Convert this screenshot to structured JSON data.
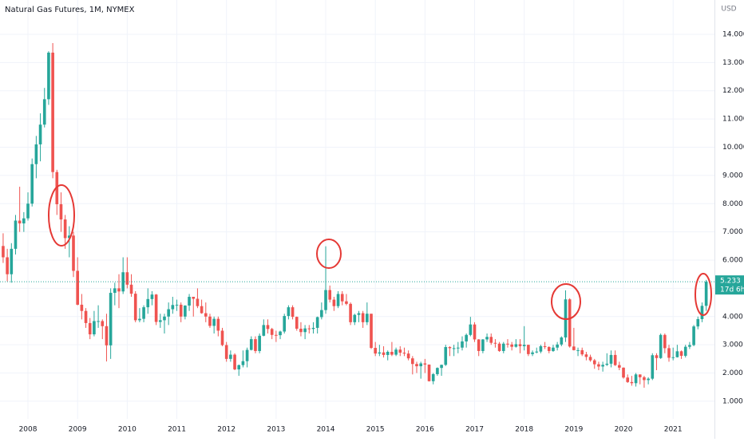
{
  "chart_data": {
    "type": "candlestick",
    "title": "Natural Gas Futures, 1M, NYMEX",
    "currency": "USD",
    "last_price_countdown": "17d 6h",
    "up_color": "#26a69a",
    "down_color": "#ef5350",
    "grid": true,
    "open": [
      6.5,
      6.1,
      5.5,
      6.4,
      7.4,
      7.3,
      7.48,
      8.0,
      9.4,
      10.1,
      10.8,
      11.7,
      13.35,
      9.12,
      7.98,
      7.44,
      6.78,
      6.87,
      5.62,
      4.42,
      4.2,
      3.77,
      3.37,
      3.84,
      3.84,
      3.66,
      2.98,
      4.84,
      5.0,
      4.89,
      5.57,
      5.13,
      4.81,
      3.87,
      3.92,
      4.33,
      4.62,
      4.78,
      3.81,
      3.87,
      4.0,
      4.26,
      4.41,
      4.42,
      4.0,
      4.39,
      4.7,
      4.63,
      4.37,
      4.12,
      4.0,
      3.67,
      3.92,
      3.5,
      2.99,
      2.5,
      2.65,
      2.13,
      2.28,
      2.42,
      2.82,
      3.2,
      2.78,
      3.32,
      3.7,
      3.56,
      3.35,
      3.34,
      3.47,
      4.02,
      4.33,
      3.99,
      3.57,
      3.45,
      3.58,
      3.56,
      3.6,
      3.98,
      4.23,
      4.94,
      4.6,
      4.37,
      4.8,
      4.54,
      4.45,
      3.8,
      4.06,
      4.12,
      3.8,
      4.1,
      2.89,
      2.69,
      2.73,
      2.64,
      2.75,
      2.65,
      2.83,
      2.72,
      2.69,
      2.52,
      2.32,
      2.24,
      2.34,
      2.3,
      1.71,
      1.96,
      2.18,
      2.29,
      2.92,
      2.88,
      2.88,
      2.9,
      3.12,
      3.35,
      3.72,
      3.19,
      2.78,
      3.19,
      3.28,
      3.07,
      3.04,
      2.78,
      3.04,
      3.01,
      2.93,
      3.02,
      2.95,
      3.0,
      2.67,
      2.73,
      2.76,
      2.95,
      2.92,
      2.78,
      2.9,
      3.01,
      3.26,
      4.61,
      2.94,
      2.81,
      2.81,
      2.66,
      2.57,
      2.45,
      2.31,
      2.23,
      2.29,
      2.33,
      2.64,
      2.28,
      2.19,
      1.84,
      1.68,
      1.64,
      1.95,
      1.85,
      1.75,
      1.8,
      2.63,
      2.53,
      3.35,
      2.88,
      2.54,
      2.56,
      2.77,
      2.61,
      2.93,
      2.99,
      3.65,
      3.91,
      4.38
    ],
    "high": [
      6.95,
      6.4,
      6.6,
      7.6,
      8.6,
      7.7,
      8.4,
      9.6,
      10.4,
      11.2,
      12.1,
      13.4,
      13.69,
      9.2,
      8.4,
      7.6,
      7.2,
      7.0,
      6.1,
      4.8,
      4.3,
      3.95,
      4.2,
      4.4,
      3.9,
      4.1,
      5.0,
      5.2,
      5.5,
      6.1,
      6.1,
      5.5,
      4.9,
      4.3,
      4.4,
      5.0,
      4.9,
      4.8,
      4.1,
      4.1,
      4.5,
      4.7,
      4.6,
      4.5,
      4.4,
      4.8,
      4.7,
      5.0,
      4.6,
      4.5,
      4.1,
      4.0,
      4.0,
      3.6,
      3.1,
      2.8,
      2.7,
      2.3,
      2.8,
      2.9,
      3.3,
      3.3,
      3.4,
      3.9,
      3.9,
      3.6,
      3.5,
      3.5,
      4.1,
      4.4,
      4.4,
      4.0,
      3.8,
      3.7,
      3.7,
      3.8,
      4.0,
      4.5,
      6.49,
      5.1,
      4.7,
      4.9,
      4.9,
      4.8,
      4.5,
      4.1,
      4.2,
      4.2,
      4.5,
      4.1,
      3.1,
      3.0,
      2.95,
      2.8,
      3.1,
      2.9,
      2.95,
      2.9,
      2.8,
      2.6,
      2.4,
      2.4,
      2.5,
      2.3,
      2.0,
      2.2,
      2.3,
      3.0,
      2.95,
      3.0,
      3.1,
      3.3,
      3.4,
      3.99,
      3.8,
      3.2,
      3.2,
      3.4,
      3.4,
      3.2,
      3.1,
      3.1,
      3.2,
      3.1,
      3.2,
      3.2,
      3.66,
      3.0,
      2.8,
      2.9,
      3.0,
      3.1,
      2.95,
      3.0,
      3.1,
      3.3,
      4.93,
      4.65,
      3.6,
      2.9,
      2.9,
      2.75,
      2.65,
      2.5,
      2.4,
      2.4,
      2.7,
      2.8,
      2.8,
      2.4,
      2.2,
      1.95,
      1.9,
      2.0,
      1.95,
      1.9,
      1.85,
      2.7,
      2.7,
      3.4,
      3.4,
      3.0,
      2.9,
      3.0,
      2.8,
      3.0,
      3.1,
      3.7,
      4.0,
      4.5,
      5.3
    ],
    "low": [
      5.9,
      5.25,
      5.2,
      6.2,
      7.0,
      7.0,
      7.4,
      7.9,
      8.9,
      9.5,
      10.7,
      11.5,
      8.9,
      7.6,
      7.0,
      6.4,
      6.1,
      5.4,
      4.4,
      3.9,
      3.6,
      3.2,
      3.3,
      3.6,
      3.2,
      2.41,
      2.5,
      4.4,
      4.3,
      4.8,
      5.0,
      4.7,
      3.8,
      3.8,
      3.8,
      4.1,
      4.4,
      3.7,
      3.6,
      3.4,
      3.7,
      4.1,
      4.2,
      3.8,
      3.9,
      4.2,
      4.0,
      4.3,
      4.1,
      3.8,
      3.6,
      3.4,
      3.3,
      2.95,
      2.4,
      2.4,
      2.1,
      1.9,
      2.2,
      2.2,
      2.8,
      2.7,
      2.7,
      3.3,
      3.4,
      3.2,
      3.1,
      3.2,
      3.4,
      3.9,
      3.9,
      3.5,
      3.3,
      3.2,
      3.4,
      3.4,
      3.4,
      3.9,
      4.1,
      4.5,
      4.2,
      4.3,
      4.4,
      4.4,
      3.7,
      3.7,
      3.8,
      3.6,
      3.7,
      2.85,
      2.6,
      2.6,
      2.55,
      2.45,
      2.6,
      2.6,
      2.6,
      2.6,
      2.45,
      1.95,
      2.0,
      1.8,
      2.0,
      1.7,
      1.6,
      1.9,
      1.9,
      2.25,
      2.6,
      2.6,
      2.7,
      2.8,
      2.9,
      3.3,
      3.1,
      2.6,
      2.7,
      3.1,
      3.0,
      2.9,
      2.75,
      2.7,
      2.9,
      2.8,
      2.9,
      2.7,
      2.8,
      2.6,
      2.6,
      2.7,
      2.7,
      2.85,
      2.7,
      2.75,
      2.8,
      2.95,
      3.1,
      2.9,
      2.8,
      2.6,
      2.6,
      2.45,
      2.4,
      2.15,
      2.1,
      2.05,
      2.25,
      2.2,
      2.25,
      2.1,
      1.8,
      1.65,
      1.55,
      1.52,
      1.6,
      1.48,
      1.6,
      1.75,
      2.1,
      2.5,
      2.7,
      2.4,
      2.45,
      2.55,
      2.5,
      2.55,
      2.85,
      2.95,
      3.55,
      3.8,
      4.2
    ],
    "close": [
      6.1,
      5.5,
      6.4,
      7.4,
      7.3,
      7.48,
      8.0,
      9.4,
      10.1,
      10.8,
      11.7,
      13.35,
      9.12,
      7.98,
      7.44,
      6.78,
      6.87,
      5.62,
      4.42,
      4.2,
      3.77,
      3.37,
      3.84,
      3.84,
      3.66,
      2.98,
      4.84,
      5.0,
      4.89,
      5.57,
      5.13,
      4.81,
      3.87,
      3.92,
      4.33,
      4.62,
      4.78,
      3.81,
      3.87,
      4.0,
      4.26,
      4.41,
      4.42,
      4.0,
      4.39,
      4.7,
      4.63,
      4.37,
      4.12,
      4.0,
      3.67,
      3.92,
      3.5,
      2.99,
      2.5,
      2.65,
      2.13,
      2.28,
      2.42,
      2.82,
      3.2,
      2.78,
      3.32,
      3.7,
      3.56,
      3.35,
      3.34,
      3.47,
      4.02,
      4.33,
      3.99,
      3.57,
      3.45,
      3.58,
      3.56,
      3.6,
      3.98,
      4.23,
      4.94,
      4.6,
      4.37,
      4.8,
      4.54,
      4.45,
      3.8,
      4.06,
      4.12,
      3.8,
      4.1,
      2.89,
      2.69,
      2.73,
      2.64,
      2.75,
      2.65,
      2.83,
      2.72,
      2.69,
      2.52,
      2.32,
      2.24,
      2.34,
      2.3,
      1.71,
      1.96,
      2.18,
      2.29,
      2.92,
      2.88,
      2.88,
      2.9,
      3.12,
      3.35,
      3.72,
      3.19,
      2.78,
      3.19,
      3.28,
      3.07,
      3.04,
      2.78,
      3.04,
      3.01,
      2.93,
      3.02,
      2.95,
      3.0,
      2.67,
      2.73,
      2.76,
      2.95,
      2.92,
      2.78,
      2.9,
      3.01,
      3.26,
      4.61,
      2.94,
      2.81,
      2.81,
      2.66,
      2.57,
      2.45,
      2.31,
      2.23,
      2.29,
      2.33,
      2.64,
      2.28,
      2.19,
      1.84,
      1.68,
      1.64,
      1.95,
      1.85,
      1.75,
      1.8,
      2.63,
      2.53,
      3.35,
      2.88,
      2.54,
      2.56,
      2.77,
      2.61,
      2.93,
      2.99,
      3.65,
      3.91,
      4.38,
      5.233
    ],
    "xlim": [
      -0.76,
      172
    ],
    "xticks": [
      {
        "value": 6,
        "label": "2008"
      },
      {
        "value": 18,
        "label": "2009"
      },
      {
        "value": 30,
        "label": "2010"
      },
      {
        "value": 42,
        "label": "2011"
      },
      {
        "value": 54,
        "label": "2012"
      },
      {
        "value": 66,
        "label": "2013"
      },
      {
        "value": 78,
        "label": "2014"
      },
      {
        "value": 90,
        "label": "2015"
      },
      {
        "value": 102,
        "label": "2016"
      },
      {
        "value": 114,
        "label": "2017"
      },
      {
        "value": 126,
        "label": "2018"
      },
      {
        "value": 138,
        "label": "2019"
      },
      {
        "value": 150,
        "label": "2020"
      },
      {
        "value": 162,
        "label": "2021"
      }
    ],
    "ylim": [
      0.376,
      15.215
    ],
    "yticks": [
      {
        "value": 1,
        "label": "1.000"
      },
      {
        "value": 2,
        "label": "2.000"
      },
      {
        "value": 3,
        "label": "3.000"
      },
      {
        "value": 4,
        "label": "4.000"
      },
      {
        "value": 5,
        "label": "5.000"
      },
      {
        "value": 6,
        "label": "6.000"
      },
      {
        "value": 7,
        "label": "7.000"
      },
      {
        "value": 8,
        "label": "8.000"
      },
      {
        "value": 9,
        "label": "9.000"
      },
      {
        "value": 10,
        "label": "10.000"
      },
      {
        "value": 11,
        "label": "11.000"
      },
      {
        "value": 12,
        "label": "12.000"
      },
      {
        "value": 13,
        "label": "13.000"
      },
      {
        "value": 14,
        "label": "14.000"
      }
    ]
  }
}
